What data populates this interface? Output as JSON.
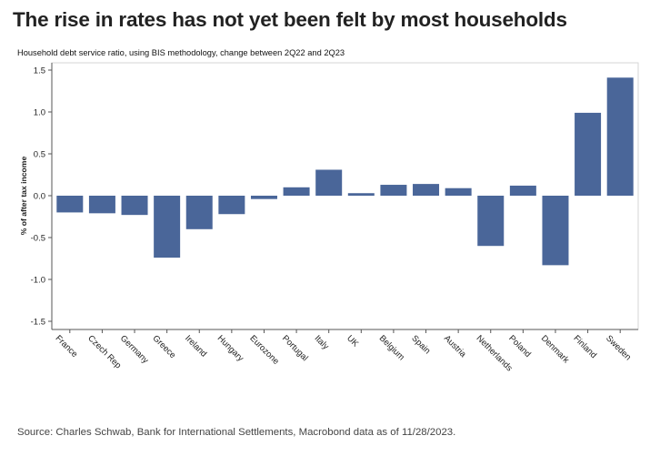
{
  "headline": "The rise in rates has not yet been felt by most households",
  "source": "Source: Charles Schwab, Bank for International Settlements, Macrobond data as of 11/28/2023.",
  "colors": {
    "bar": "#4a6699",
    "axis": "#555555",
    "frame": "#d6d6d6"
  },
  "chart_data": {
    "type": "bar",
    "title": "Household debt service ratio, using BIS methodology, change between 2Q22 and 2Q23",
    "xlabel": "",
    "ylabel": "% of after tax income",
    "ylim": [
      -1.5,
      1.5
    ],
    "yticks": [
      1.5,
      1.0,
      0.5,
      0.0,
      -0.5,
      -1.0,
      -1.5
    ],
    "ytick_labels": [
      "1.5",
      "1.0",
      "0.5",
      "0.0",
      "-0.5",
      "-1.0",
      "-1.5"
    ],
    "grid": false,
    "categories": [
      "France",
      "Czech Rep",
      "Germany",
      "Greece",
      "Ireland",
      "Hungary",
      "Eurozone",
      "Portugal",
      "Italy",
      "UK",
      "Belgium",
      "Spain",
      "Austria",
      "Netherlands",
      "Poland",
      "Denmark",
      "Finland",
      "Sweden"
    ],
    "values": [
      -0.2,
      -0.21,
      -0.23,
      -0.74,
      -0.4,
      -0.22,
      -0.04,
      0.1,
      0.31,
      0.03,
      0.13,
      0.14,
      0.09,
      -0.6,
      0.12,
      -0.83,
      0.99,
      1.41
    ]
  }
}
